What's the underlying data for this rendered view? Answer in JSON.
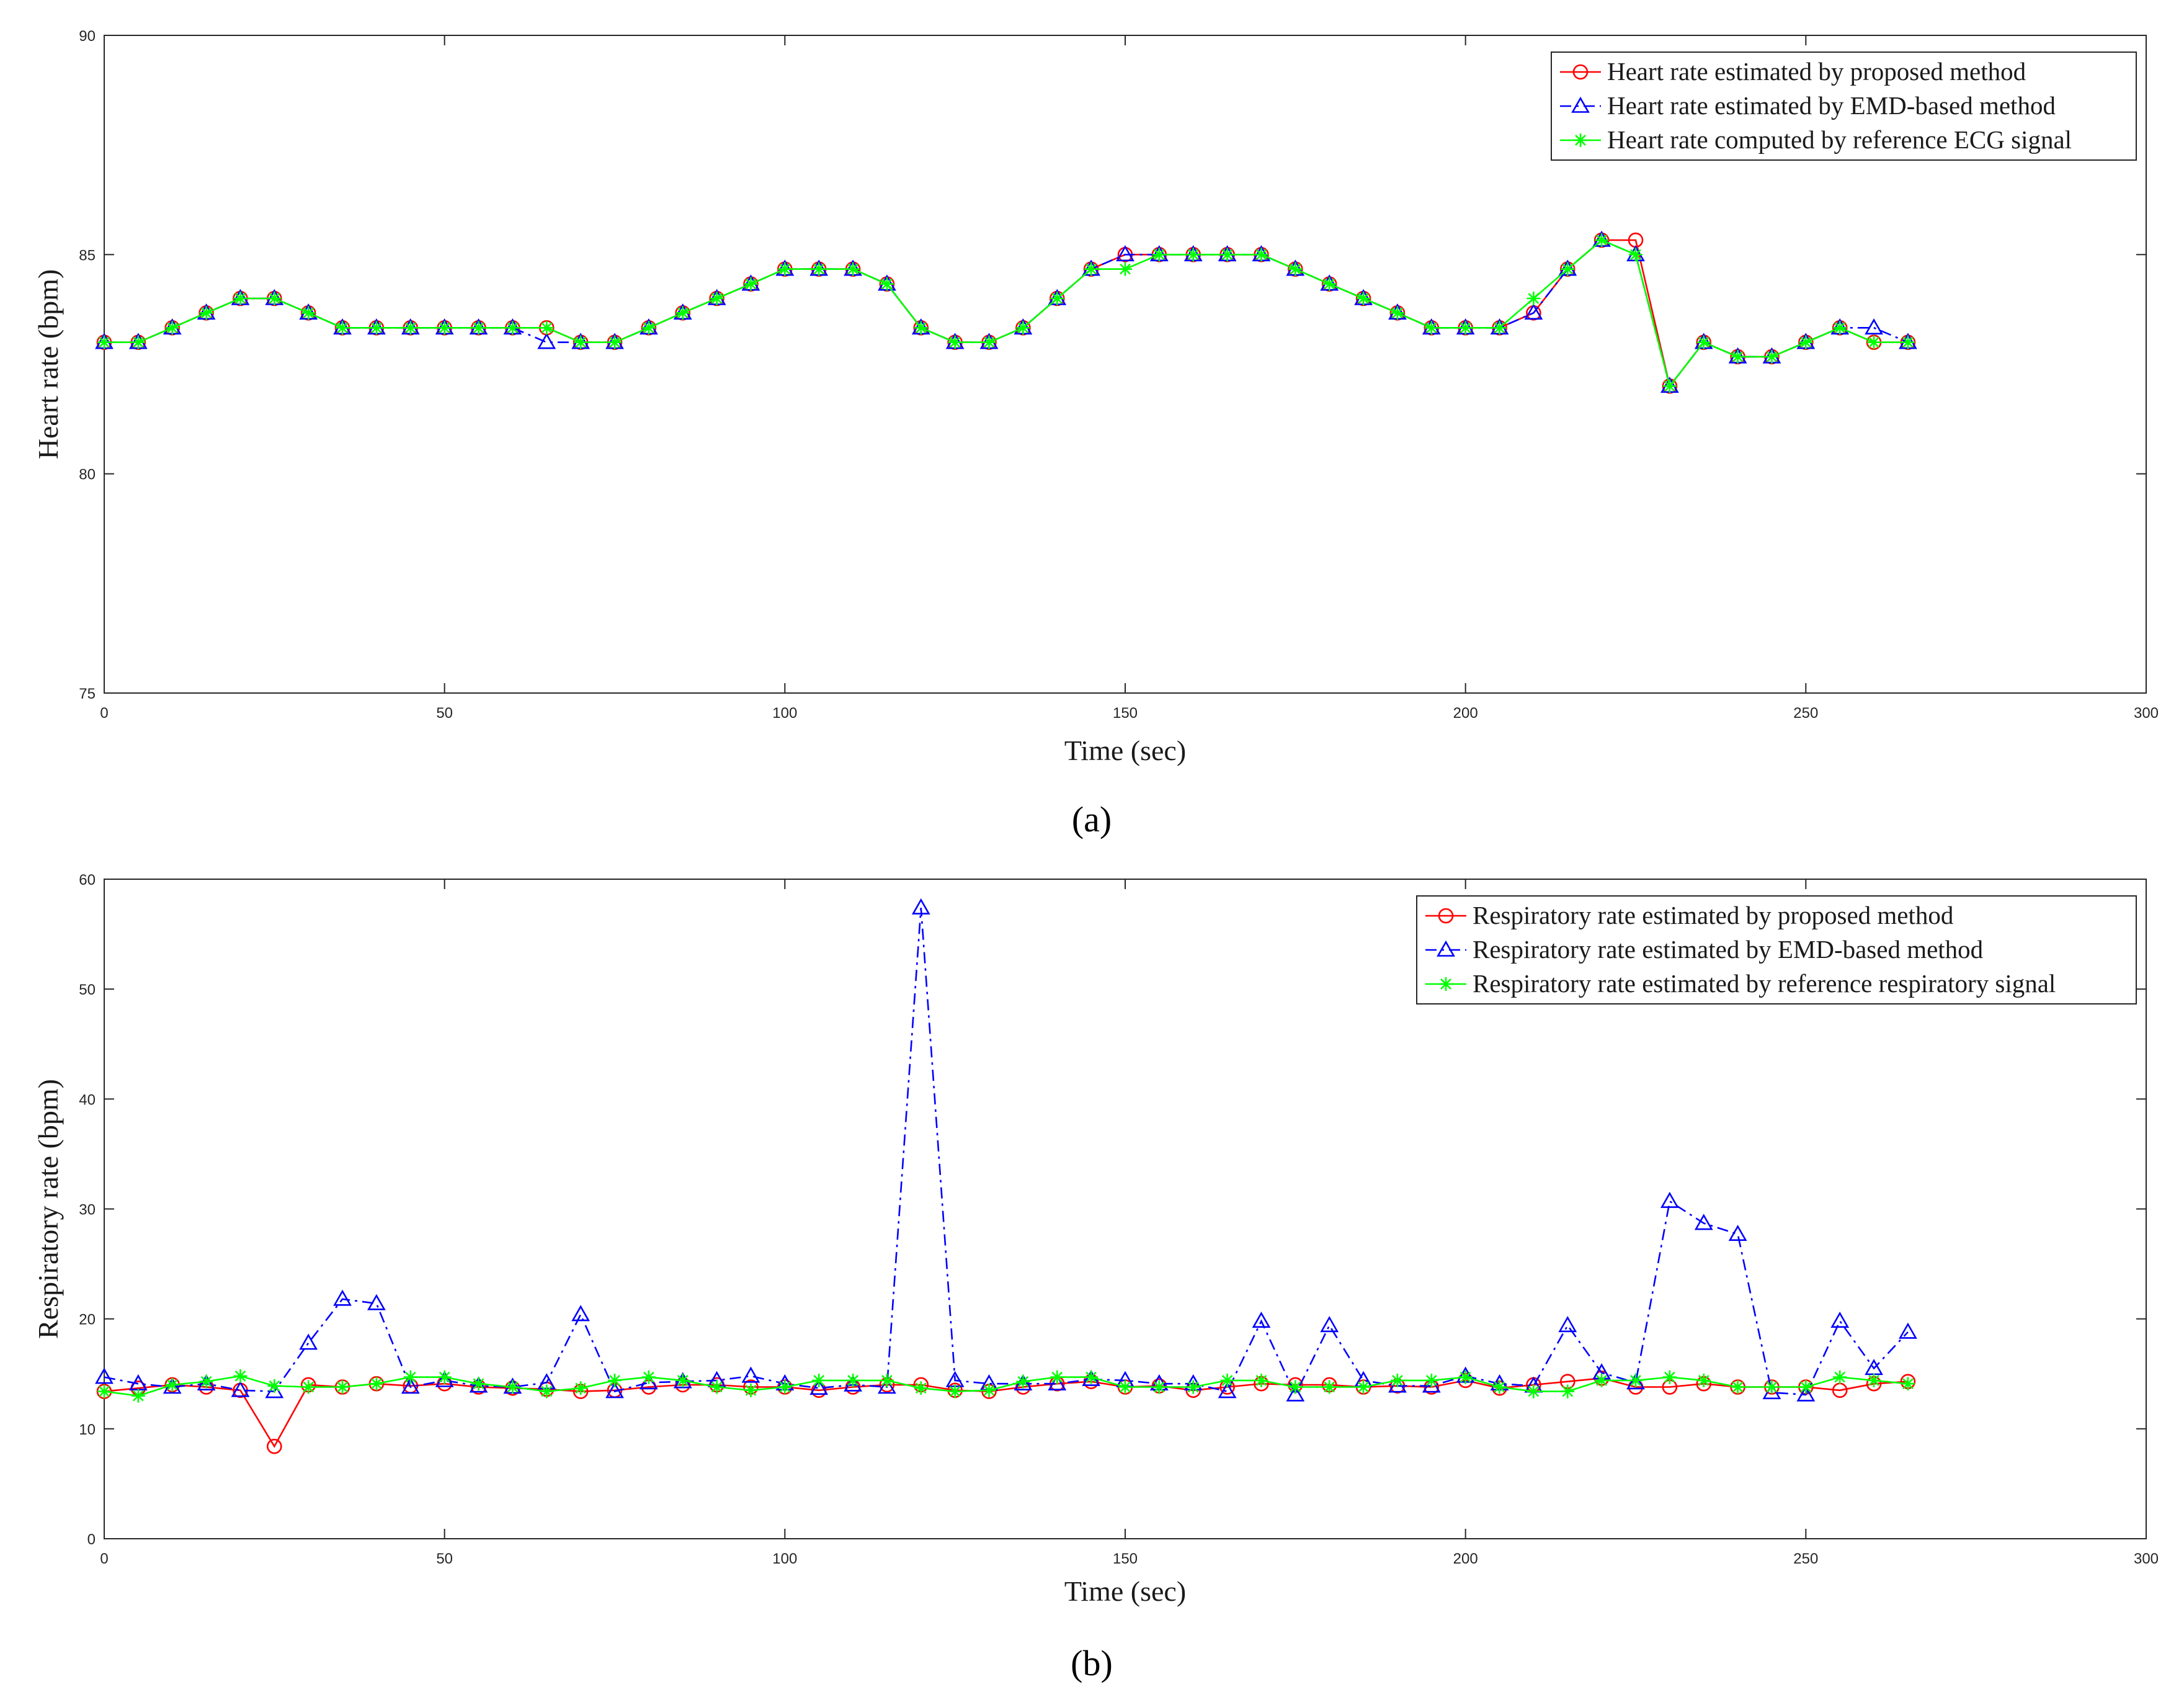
{
  "chart_data": [
    {
      "type": "line",
      "panel_label": "(a)",
      "xlabel": "Time (sec)",
      "ylabel": "Heart rate (bpm)",
      "xlim": [
        0,
        300
      ],
      "ylim": [
        75,
        90
      ],
      "xticks": [
        0,
        50,
        100,
        150,
        200,
        250,
        300
      ],
      "yticks": [
        75,
        80,
        85,
        90
      ],
      "grid": false,
      "legend_position": "top-right",
      "x": [
        0,
        5,
        10,
        15,
        20,
        25,
        30,
        35,
        40,
        45,
        50,
        55,
        60,
        65,
        70,
        75,
        80,
        85,
        90,
        95,
        100,
        105,
        110,
        115,
        120,
        125,
        130,
        135,
        140,
        145,
        150,
        155,
        160,
        165,
        170,
        175,
        180,
        185,
        190,
        195,
        200,
        205,
        210,
        215,
        220,
        225,
        230,
        235,
        240,
        245,
        250,
        255,
        260,
        265
      ],
      "series": [
        {
          "name": "Heart rate estimated by proposed method",
          "color": "#ff0000",
          "marker": "circle",
          "dash": "solid",
          "values": [
            83,
            83,
            83.33,
            83.67,
            84,
            84,
            83.67,
            83.33,
            83.33,
            83.33,
            83.33,
            83.33,
            83.33,
            83.33,
            83,
            83,
            83.33,
            83.67,
            84,
            84.33,
            84.67,
            84.67,
            84.67,
            84.33,
            83.33,
            83,
            83,
            83.33,
            84,
            84.67,
            85,
            85,
            85,
            85,
            85,
            84.67,
            84.33,
            84,
            83.67,
            83.33,
            83.33,
            83.33,
            83.67,
            84.67,
            85.33,
            85.33,
            82,
            83,
            82.67,
            82.67,
            83,
            83.33,
            83,
            83
          ]
        },
        {
          "name": "Heart rate estimated by EMD-based method",
          "color": "#0000ff",
          "marker": "triangle",
          "dash": "dashdot",
          "values": [
            83,
            83,
            83.33,
            83.67,
            84,
            84,
            83.67,
            83.33,
            83.33,
            83.33,
            83.33,
            83.33,
            83.33,
            83,
            83,
            83,
            83.33,
            83.67,
            84,
            84.33,
            84.67,
            84.67,
            84.67,
            84.33,
            83.33,
            83,
            83,
            83.33,
            84,
            84.67,
            85,
            85,
            85,
            85,
            85,
            84.67,
            84.33,
            84,
            83.67,
            83.33,
            83.33,
            83.33,
            83.67,
            84.67,
            85.33,
            85,
            82,
            83,
            82.67,
            82.67,
            83,
            83.33,
            83.33,
            83
          ]
        },
        {
          "name": "Heart rate computed by reference ECG signal",
          "color": "#00ff00",
          "marker": "star",
          "dash": "solid",
          "values": [
            83,
            83,
            83.33,
            83.67,
            84,
            84,
            83.67,
            83.33,
            83.33,
            83.33,
            83.33,
            83.33,
            83.33,
            83.33,
            83,
            83,
            83.33,
            83.67,
            84,
            84.33,
            84.67,
            84.67,
            84.67,
            84.33,
            83.33,
            83,
            83,
            83.33,
            84,
            84.67,
            84.67,
            85,
            85,
            85,
            85,
            84.67,
            84.33,
            84,
            83.67,
            83.33,
            83.33,
            83.33,
            84,
            84.67,
            85.33,
            85,
            82,
            83,
            82.67,
            82.67,
            83,
            83.33,
            83,
            83
          ]
        }
      ]
    },
    {
      "type": "line",
      "panel_label": "(b)",
      "xlabel": "Time (sec)",
      "ylabel": "Respiratory rate (bpm)",
      "xlim": [
        0,
        300
      ],
      "ylim": [
        0,
        60
      ],
      "xticks": [
        0,
        50,
        100,
        150,
        200,
        250,
        300
      ],
      "yticks": [
        0,
        10,
        20,
        30,
        40,
        50,
        60
      ],
      "grid": false,
      "legend_position": "top-right",
      "x": [
        0,
        5,
        10,
        15,
        20,
        25,
        30,
        35,
        40,
        45,
        50,
        55,
        60,
        65,
        70,
        75,
        80,
        85,
        90,
        95,
        100,
        105,
        110,
        115,
        120,
        125,
        130,
        135,
        140,
        145,
        150,
        155,
        160,
        165,
        170,
        175,
        180,
        185,
        190,
        195,
        200,
        205,
        210,
        215,
        220,
        225,
        230,
        235,
        240,
        245,
        250,
        255,
        260,
        265
      ],
      "series": [
        {
          "name": "Respiratory rate estimated by proposed method",
          "color": "#ff0000",
          "marker": "circle",
          "dash": "solid",
          "values": [
            13.4,
            13.7,
            14,
            13.8,
            13.5,
            8.4,
            14,
            13.8,
            14.1,
            13.9,
            14.1,
            13.8,
            13.7,
            13.6,
            13.4,
            13.5,
            13.8,
            14,
            14,
            13.8,
            13.8,
            13.5,
            13.8,
            14,
            14,
            13.5,
            13.4,
            13.8,
            14.1,
            14.3,
            13.8,
            13.9,
            13.5,
            13.8,
            14.1,
            14,
            14,
            13.8,
            13.9,
            13.8,
            14.4,
            13.7,
            14,
            14.3,
            14.6,
            13.8,
            13.8,
            14.1,
            13.8,
            13.8,
            13.8,
            13.5,
            14.1,
            14.3
          ]
        },
        {
          "name": "Respiratory rate estimated by EMD-based method",
          "color": "#0000ff",
          "marker": "triangle",
          "dash": "dashdot",
          "values": [
            14.7,
            14.1,
            13.8,
            14.1,
            13.5,
            13.4,
            17.8,
            21.8,
            21.4,
            13.8,
            14.4,
            13.9,
            13.8,
            14.2,
            20.4,
            13.4,
            14.2,
            14.3,
            14.4,
            14.8,
            14.1,
            13.7,
            14,
            13.8,
            57.4,
            14.4,
            14.1,
            14.1,
            14.1,
            14.5,
            14.4,
            14.1,
            14.1,
            13.4,
            19.8,
            13.1,
            19.4,
            14.4,
            13.9,
            13.9,
            14.8,
            14.1,
            13.9,
            19.4,
            15.1,
            14.2,
            30.7,
            28.7,
            27.7,
            13.3,
            13.1,
            19.8,
            15.5,
            18.8
          ]
        },
        {
          "name": "Respiratory rate estimated by reference respiratory signal",
          "color": "#00ff00",
          "marker": "star",
          "dash": "solid",
          "values": [
            13.4,
            13,
            14,
            14.3,
            14.8,
            13.9,
            13.8,
            13.8,
            14.1,
            14.7,
            14.7,
            14.1,
            13.8,
            13.4,
            13.7,
            14.4,
            14.7,
            14.4,
            13.8,
            13.5,
            13.8,
            14.4,
            14.4,
            14.4,
            13.7,
            13.4,
            13.5,
            14.3,
            14.7,
            14.7,
            13.8,
            13.8,
            13.8,
            14.4,
            14.4,
            13.8,
            13.8,
            13.8,
            14.4,
            14.4,
            14.7,
            13.8,
            13.4,
            13.4,
            14.4,
            14.4,
            14.7,
            14.4,
            13.8,
            13.8,
            13.8,
            14.7,
            14.4,
            14.1
          ]
        }
      ]
    }
  ]
}
